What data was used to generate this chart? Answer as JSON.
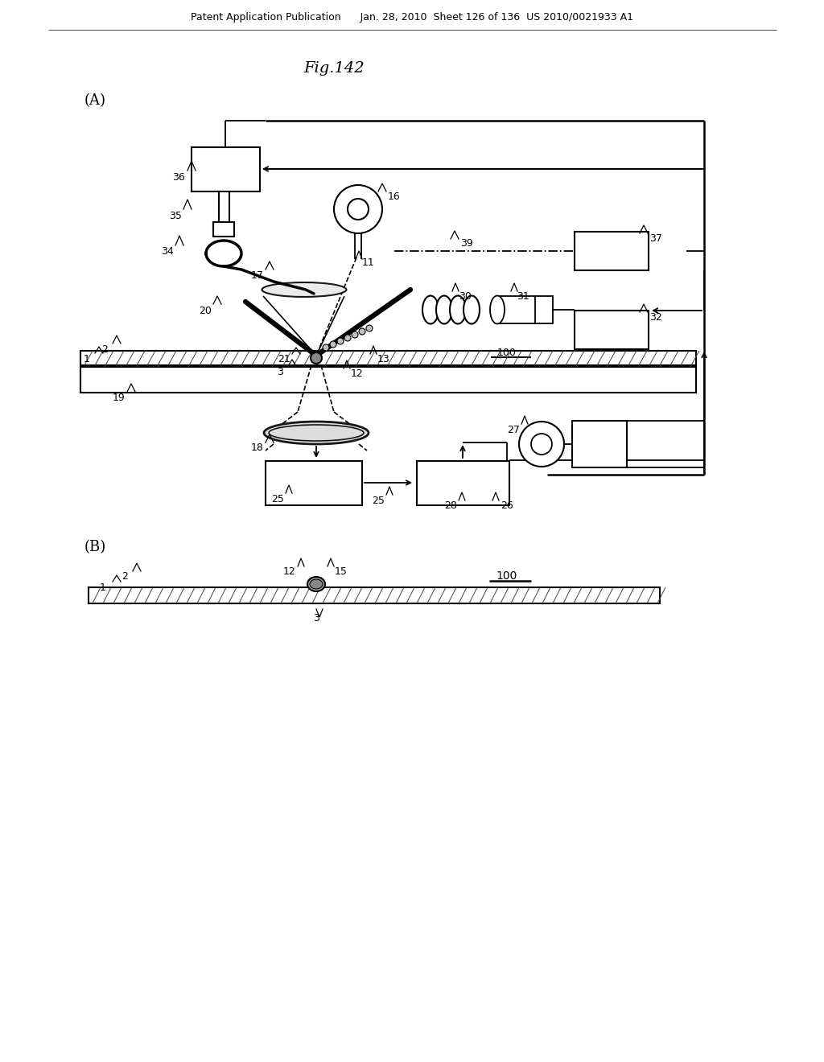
{
  "title": "Fig.142",
  "header": "Patent Application Publication      Jan. 28, 2010  Sheet 126 of 136  US 2010/0021933 A1",
  "bg_color": "#ffffff",
  "label_A": "(A)",
  "label_B": "(B)"
}
